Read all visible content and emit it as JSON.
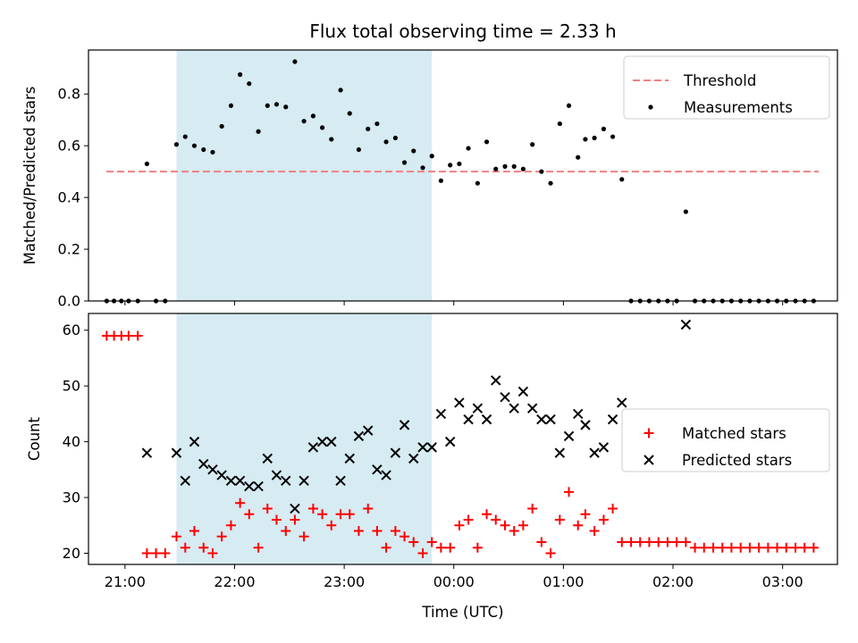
{
  "chart_data": [
    {
      "type": "scatter",
      "title": "Flux total observing time = 2.33 h",
      "ylabel": "Matched/Predicted stars",
      "xlabel": "",
      "xlim": [
        20.667,
        27.5
      ],
      "ylim": [
        0.0,
        0.97
      ],
      "yticks": [
        0.0,
        0.2,
        0.4,
        0.6,
        0.8
      ],
      "ytick_labels": [
        "0.0",
        "0.2",
        "0.4",
        "0.6",
        "0.8"
      ],
      "shaded_span": {
        "x0": 21.47,
        "x1": 23.8,
        "color": "#add8e6"
      },
      "grid": false,
      "legend_position": "top-right",
      "threshold": {
        "name": "Threshold",
        "y": 0.5,
        "x0": 20.83,
        "x1": 27.33,
        "color": "#f08080"
      },
      "series": [
        {
          "name": "Measurements",
          "marker": "dot",
          "color": "#000000",
          "x": [
            20.833,
            20.9,
            20.967,
            21.033,
            21.117,
            21.2,
            21.283,
            21.367,
            21.47,
            21.55,
            21.633,
            21.717,
            21.8,
            21.883,
            21.967,
            22.05,
            22.133,
            22.217,
            22.3,
            22.383,
            22.467,
            22.55,
            22.633,
            22.717,
            22.8,
            22.883,
            22.967,
            23.05,
            23.133,
            23.217,
            23.3,
            23.383,
            23.467,
            23.55,
            23.633,
            23.717,
            23.8,
            23.883,
            23.967,
            24.05,
            24.133,
            24.217,
            24.3,
            24.383,
            24.467,
            24.55,
            24.633,
            24.717,
            24.8,
            24.883,
            24.967,
            25.05,
            25.133,
            25.2,
            25.283,
            25.367,
            25.45,
            25.533,
            25.617,
            25.7,
            25.783,
            25.867,
            25.95,
            26.033,
            26.117,
            26.2,
            26.283,
            26.367,
            26.45,
            26.533,
            26.617,
            26.7,
            26.783,
            26.867,
            26.95,
            27.033,
            27.117,
            27.2,
            27.283
          ],
          "y": [
            0,
            0,
            0,
            0,
            0,
            0.53,
            0,
            0,
            0.605,
            0.635,
            0.6,
            0.585,
            0.575,
            0.675,
            0.755,
            0.875,
            0.84,
            0.655,
            0.755,
            0.76,
            0.75,
            0.925,
            0.695,
            0.715,
            0.67,
            0.625,
            0.815,
            0.725,
            0.585,
            0.665,
            0.685,
            0.615,
            0.63,
            0.535,
            0.58,
            0.515,
            0.56,
            0.465,
            0.525,
            0.53,
            0.59,
            0.455,
            0.615,
            0.51,
            0.52,
            0.52,
            0.51,
            0.605,
            0.5,
            0.455,
            0.685,
            0.755,
            0.555,
            0.625,
            0.63,
            0.665,
            0.635,
            0.47,
            0,
            0,
            0,
            0,
            0,
            0,
            0.345,
            0,
            0,
            0,
            0,
            0,
            0,
            0,
            0,
            0,
            0,
            0,
            0,
            0,
            0
          ]
        }
      ]
    },
    {
      "type": "scatter",
      "title": "",
      "xlabel": "Time (UTC)",
      "ylabel": "Count",
      "xlim": [
        20.667,
        27.5
      ],
      "ylim": [
        18,
        63
      ],
      "xticks": [
        21,
        22,
        23,
        24,
        25,
        26,
        27
      ],
      "xtick_labels": [
        "21:00",
        "22:00",
        "23:00",
        "00:00",
        "01:00",
        "02:00",
        "03:00"
      ],
      "yticks": [
        20,
        30,
        40,
        50,
        60
      ],
      "ytick_labels": [
        "20",
        "30",
        "40",
        "50",
        "60"
      ],
      "shaded_span": {
        "x0": 21.47,
        "x1": 23.8,
        "color": "#add8e6"
      },
      "grid": false,
      "legend_position": "center-right",
      "series": [
        {
          "name": "Matched stars",
          "marker": "plus",
          "color": "#ff0000",
          "x": [
            20.833,
            20.9,
            20.967,
            21.033,
            21.117,
            21.2,
            21.283,
            21.367,
            21.47,
            21.55,
            21.633,
            21.717,
            21.8,
            21.883,
            21.967,
            22.05,
            22.133,
            22.217,
            22.3,
            22.383,
            22.467,
            22.55,
            22.633,
            22.717,
            22.8,
            22.883,
            22.967,
            23.05,
            23.133,
            23.217,
            23.3,
            23.383,
            23.467,
            23.55,
            23.633,
            23.717,
            23.8,
            23.883,
            23.967,
            24.05,
            24.133,
            24.217,
            24.3,
            24.383,
            24.467,
            24.55,
            24.633,
            24.717,
            24.8,
            24.883,
            24.967,
            25.05,
            25.133,
            25.2,
            25.283,
            25.367,
            25.45,
            25.533,
            25.617,
            25.7,
            25.783,
            25.867,
            25.95,
            26.033,
            26.117,
            26.2,
            26.283,
            26.367,
            26.45,
            26.533,
            26.617,
            26.7,
            26.783,
            26.867,
            26.95,
            27.033,
            27.117,
            27.2,
            27.283
          ],
          "y": [
            59,
            59,
            59,
            59,
            59,
            20,
            20,
            20,
            23,
            21,
            24,
            21,
            20,
            23,
            25,
            29,
            27,
            21,
            28,
            26,
            24,
            26,
            23,
            28,
            27,
            25,
            27,
            27,
            24,
            28,
            24,
            21,
            24,
            23,
            22,
            20,
            22,
            21,
            21,
            25,
            26,
            21,
            27,
            26,
            25,
            24,
            25,
            28,
            22,
            20,
            26,
            31,
            25,
            27,
            24,
            26,
            28,
            22,
            22,
            22,
            22,
            22,
            22,
            22,
            22,
            21,
            21,
            21,
            21,
            21,
            21,
            21,
            21,
            21,
            21,
            21,
            21,
            21,
            21
          ]
        },
        {
          "name": "Predicted stars",
          "marker": "x",
          "color": "#000000",
          "x": [
            21.2,
            21.47,
            21.55,
            21.633,
            21.717,
            21.8,
            21.883,
            21.967,
            22.05,
            22.133,
            22.217,
            22.3,
            22.383,
            22.467,
            22.55,
            22.633,
            22.717,
            22.8,
            22.883,
            22.967,
            23.05,
            23.133,
            23.217,
            23.3,
            23.383,
            23.467,
            23.55,
            23.633,
            23.717,
            23.8,
            23.883,
            23.967,
            24.05,
            24.133,
            24.217,
            24.3,
            24.383,
            24.467,
            24.55,
            24.633,
            24.717,
            24.8,
            24.883,
            24.967,
            25.05,
            25.133,
            25.2,
            25.283,
            25.367,
            25.45,
            25.533,
            26.117
          ],
          "y": [
            38,
            38,
            33,
            40,
            36,
            35,
            34,
            33,
            33,
            32,
            32,
            37,
            34,
            33,
            28,
            33,
            39,
            40,
            40,
            33,
            37,
            41,
            42,
            35,
            34,
            38,
            43,
            37,
            39,
            39,
            45,
            40,
            47,
            44,
            46,
            44,
            51,
            48,
            46,
            49,
            46,
            44,
            44,
            38,
            41,
            45,
            43,
            38,
            39,
            44,
            47,
            61
          ]
        }
      ]
    }
  ]
}
